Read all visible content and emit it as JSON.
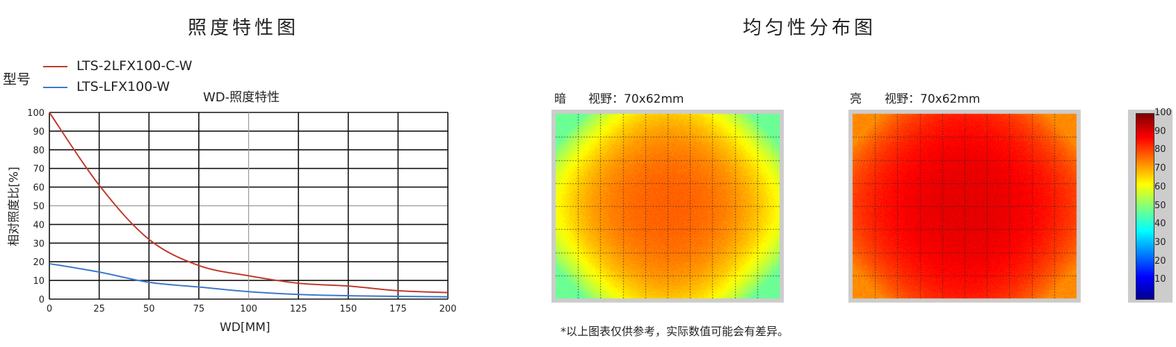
{
  "left": {
    "title": "照度特性图",
    "legend_title": "型号",
    "chart_subtitle": "WD-照度特性"
  },
  "right": {
    "title": "均匀性分布图",
    "dark_label": "暗",
    "bright_label": "亮",
    "fov_label": "视野：70x62mm",
    "colorbar": {
      "ticks": [
        "100",
        "90",
        "80",
        "70",
        "60",
        "50",
        "40",
        "30",
        "20",
        "10"
      ],
      "range": [
        0,
        100
      ],
      "colormap": "jet"
    },
    "dark_map": {
      "center_value": 78,
      "corner_value": 48
    },
    "bright_map": {
      "center_value": 90,
      "corner_value": 74
    }
  },
  "footnote": "*以上图表仅供参考，实际数值可能会有差异。",
  "chart_data": {
    "type": "line",
    "title": "WD-照度特性",
    "xlabel": "WD[MM]",
    "ylabel": "相对照度比[%]",
    "xlim": [
      0,
      200
    ],
    "ylim": [
      0,
      100
    ],
    "xticks": [
      "0",
      "25",
      "50",
      "75",
      "100",
      "125",
      "150",
      "175",
      "200"
    ],
    "yticks": [
      "0",
      "10",
      "20",
      "30",
      "40",
      "50",
      "60",
      "70",
      "80",
      "90",
      "100"
    ],
    "grid": true,
    "legend": "top-left",
    "x": [
      0,
      25,
      50,
      75,
      100,
      125,
      150,
      175,
      200
    ],
    "series": [
      {
        "name": "LTS-2LFX100-C-W",
        "color": "#c0392b",
        "values": [
          100,
          61,
          32,
          18,
          12.5,
          8.5,
          7,
          4.5,
          3.5
        ]
      },
      {
        "name": "LTS-LFX100-W",
        "color": "#3b78c8",
        "values": [
          19,
          14.5,
          9,
          6.5,
          4,
          2.5,
          1.8,
          1.5,
          1.2
        ]
      }
    ]
  }
}
